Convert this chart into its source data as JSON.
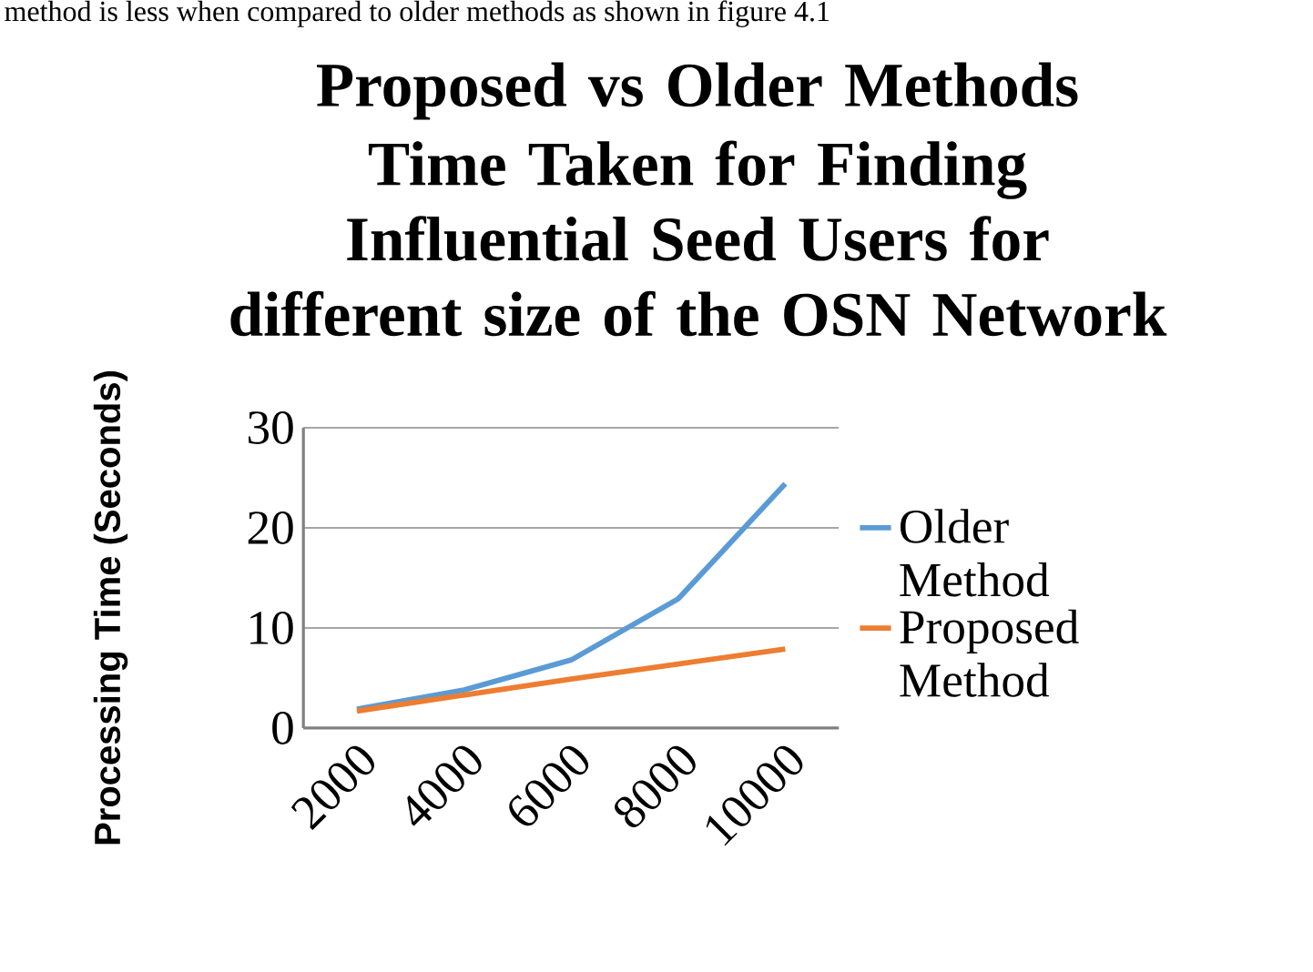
{
  "chart_data": {
    "type": "line",
    "title": "Proposed vs Older Methods",
    "subtitle": "Time Taken for Finding Influential Seed Users for different size of the OSN Network",
    "ylabel": "Processing Time (Seconds)",
    "annotations": [
      "method is less when compared to older methods as shown in figure 4.1"
    ],
    "categories": [
      "2000",
      "4000",
      "6000",
      "8000",
      "10000"
    ],
    "ylim": [
      0,
      30
    ],
    "yticks": [
      0,
      10,
      20,
      30
    ],
    "grid": "y",
    "legend": "right",
    "line_style": "solid",
    "marker": "none",
    "series": [
      {
        "name": "Older Method",
        "color": "#5b9bd5",
        "values": [
          1.9,
          3.8,
          6.8,
          12.9,
          24.4
        ]
      },
      {
        "name": "Proposed Method",
        "color": "#ed7d31",
        "values": [
          1.7,
          3.3,
          4.9,
          6.4,
          7.9
        ]
      }
    ]
  }
}
